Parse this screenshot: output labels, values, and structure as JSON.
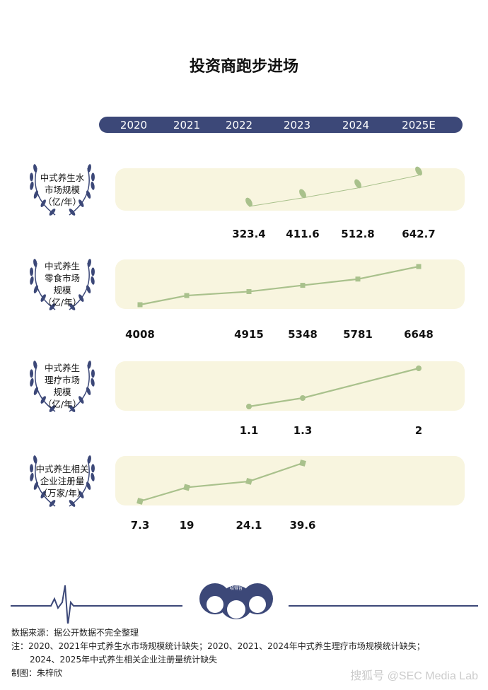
{
  "title": "投资商跑步进场",
  "colors": {
    "navy": "#3c4878",
    "cream": "#f8f5df",
    "green": "#a9c18c"
  },
  "chart_data": {
    "type": "line",
    "title": "投资商跑步进场",
    "categories": [
      "2020",
      "2021",
      "2022",
      "2023",
      "2024",
      "2025E"
    ],
    "series": [
      {
        "name": "中式养生水市场规模（亿/年）",
        "label_lines": [
          "中式养生水",
          "市场规模",
          "（亿/年）"
        ],
        "marker": "leaf",
        "values": [
          null,
          null,
          323.4,
          411.6,
          512.8,
          642.7
        ],
        "labels": [
          "",
          "",
          "323.4",
          "411.6",
          "512.8",
          "642.7"
        ]
      },
      {
        "name": "中式养生零食市场规模（亿/年）",
        "label_lines": [
          "中式养生",
          "零食市场",
          "规模",
          "（亿/年）"
        ],
        "marker": "square",
        "values": [
          4008,
          4640,
          4915,
          5348,
          5781,
          6648
        ],
        "labels": [
          "4008",
          "",
          "4915",
          "5348",
          "5781",
          "6648"
        ]
      },
      {
        "name": "中式养生理疗市场规模（亿/年）",
        "label_lines": [
          "中式养生",
          "理疗市场",
          "规模",
          "（亿/年）"
        ],
        "marker": "circle",
        "values": [
          null,
          null,
          1.1,
          1.3,
          null,
          2
        ],
        "labels": [
          "",
          "",
          "1.1",
          "1.3",
          "",
          "2"
        ]
      },
      {
        "name": "中式养生相关企业注册量（万家/年）",
        "label_lines": [
          "中式养生相关",
          "企业注册量",
          "（万家/年）"
        ],
        "marker": "diamond",
        "values": [
          7.3,
          19,
          24.1,
          39.6,
          null,
          null
        ],
        "labels": [
          "7.3",
          "19",
          "24.1",
          "39.6",
          "",
          ""
        ]
      }
    ]
  },
  "footer": {
    "source": "数据来源：据公开数据不完全整理",
    "note1": "注：2020、2021年中式养生水市场规模统计缺失；2020、2021、2024年中式养生理疗市场规模统计缺失；",
    "note2": "2024、2025年中式养生相关企业注册量统计缺失",
    "author": "制图：朱梓欣",
    "logo_text": "哈得旨",
    "watermark": "搜狐号 @SEC Media Lab"
  }
}
